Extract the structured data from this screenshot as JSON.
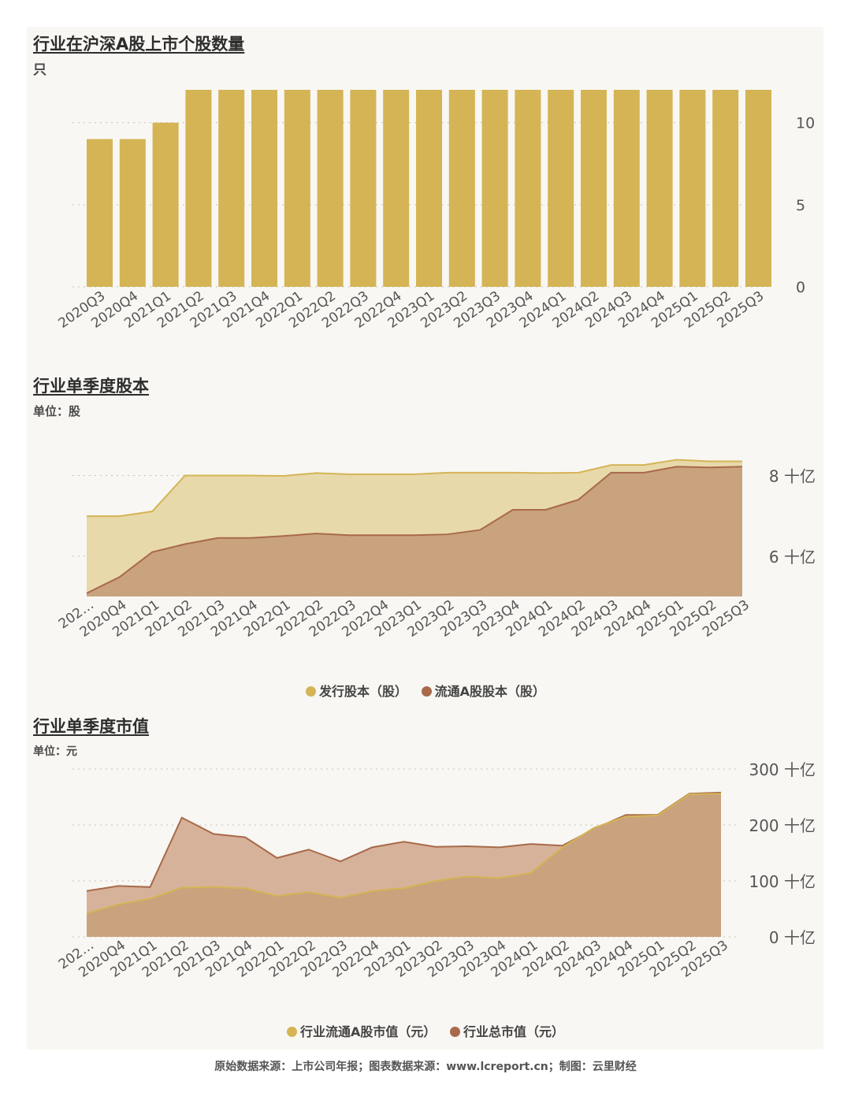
{
  "footer": "原始数据来源：上市公司年报；图表数据来源：www.lcreport.cn；制图：云里财经",
  "colors": {
    "gold": "#d4b455",
    "issued_fill": "#e8d9ab",
    "float_fill": "#c9a27e",
    "brown": "#a86a4a",
    "total_fill": "#d7b29a"
  },
  "chart_data": [
    {
      "type": "bar",
      "title": "行业在沪深A股上市个股数量",
      "ylabel": "只",
      "categories": [
        "2020Q3",
        "2020Q4",
        "2021Q1",
        "2021Q2",
        "2021Q3",
        "2021Q4",
        "2022Q1",
        "2022Q2",
        "2022Q3",
        "2022Q4",
        "2023Q1",
        "2023Q2",
        "2023Q3",
        "2023Q4",
        "2024Q1",
        "2024Q2",
        "2024Q3",
        "2024Q4",
        "2025Q1",
        "2025Q2",
        "2025Q3"
      ],
      "values": [
        9,
        9,
        10,
        12,
        12,
        12,
        12,
        12,
        12,
        12,
        12,
        12,
        12,
        12,
        12,
        12,
        12,
        12,
        12,
        12,
        12
      ],
      "yticks": [
        "0",
        "5",
        "10"
      ],
      "ylim": [
        0,
        12
      ]
    },
    {
      "type": "area",
      "title": "行业单季度股本",
      "ylabel": "单位：股",
      "categories": [
        "202…",
        "2020Q4",
        "2021Q1",
        "2021Q2",
        "2021Q3",
        "2021Q4",
        "2022Q1",
        "2022Q2",
        "2022Q3",
        "2022Q4",
        "2023Q1",
        "2023Q2",
        "2023Q3",
        "2023Q4",
        "2024Q1",
        "2024Q2",
        "2024Q3",
        "2024Q4",
        "2025Q1",
        "2025Q2",
        "2025Q3"
      ],
      "series": [
        {
          "name": "发行股本（股）",
          "values": [
            6.99,
            6.99,
            7.11,
            8.0,
            8.0,
            8.0,
            7.99,
            8.06,
            8.03,
            8.03,
            8.03,
            8.07,
            8.07,
            8.07,
            8.06,
            8.07,
            8.26,
            8.26,
            8.39,
            8.35,
            8.35
          ]
        },
        {
          "name": "流通A股股本（股）",
          "values": [
            5.08,
            5.48,
            6.1,
            6.3,
            6.45,
            6.45,
            6.5,
            6.56,
            6.52,
            6.52,
            6.52,
            6.54,
            6.65,
            7.15,
            7.15,
            7.4,
            8.07,
            8.07,
            8.22,
            8.2,
            8.22
          ]
        }
      ],
      "yticks": [
        "6 十亿",
        "8 十亿"
      ],
      "ylim": [
        5.0,
        8.4
      ]
    },
    {
      "type": "area",
      "title": "行业单季度市值",
      "ylabel": "单位：元",
      "categories": [
        "202…",
        "2020Q4",
        "2021Q1",
        "2021Q2",
        "2021Q3",
        "2021Q4",
        "2022Q1",
        "2022Q2",
        "2022Q3",
        "2022Q4",
        "2023Q1",
        "2023Q2",
        "2023Q3",
        "2023Q4",
        "2024Q1",
        "2024Q2",
        "2024Q3",
        "2024Q4",
        "2025Q1",
        "2025Q2",
        "2025Q3"
      ],
      "series": [
        {
          "name": "行业流通A股市值（元）",
          "values": [
            42,
            58,
            68,
            88,
            89,
            87,
            73,
            80,
            70,
            82,
            87,
            100,
            108,
            105,
            114,
            160,
            195,
            215,
            217,
            255,
            256
          ]
        },
        {
          "name": "行业总市值（元）",
          "values": [
            82,
            91,
            89,
            213,
            184,
            178,
            141,
            156,
            135,
            160,
            170,
            161,
            162,
            160,
            166,
            163,
            193,
            218,
            218,
            256,
            258
          ]
        }
      ],
      "yticks": [
        "0 十亿",
        "100 十亿",
        "200 十亿",
        "300 十亿"
      ],
      "ylim": [
        0,
        300
      ]
    }
  ]
}
